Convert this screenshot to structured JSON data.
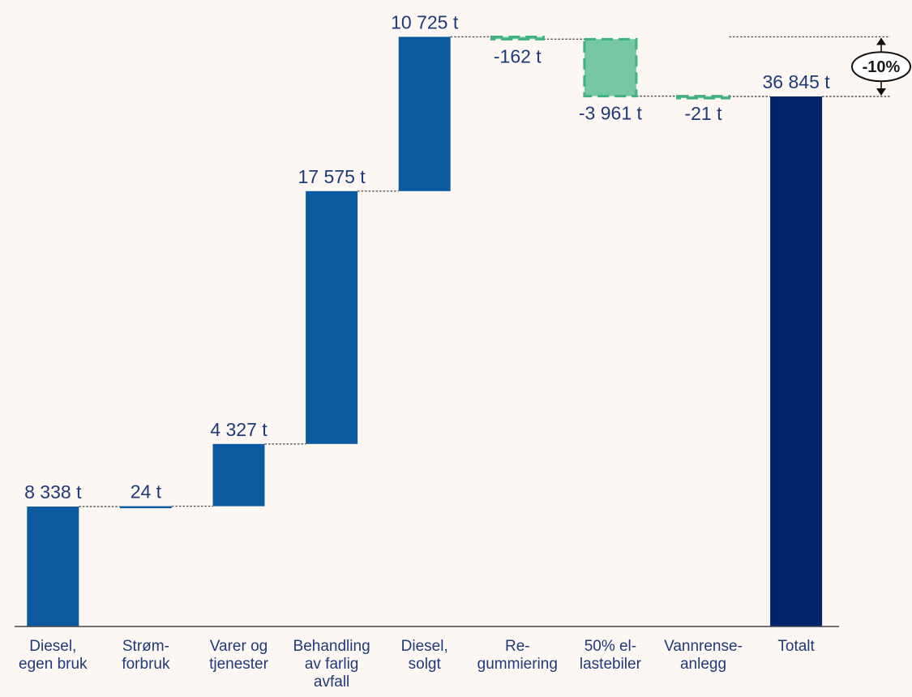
{
  "chart_data": {
    "type": "waterfall",
    "unit": "t",
    "categories": [
      [
        "Diesel,",
        "egen bruk"
      ],
      [
        "Strøm-",
        "forbruk"
      ],
      [
        "Varer og",
        "tjenester"
      ],
      [
        "Behandling",
        "av farlig",
        "avfall"
      ],
      [
        "Diesel,",
        "solgt"
      ],
      [
        "Re-",
        "gummiering"
      ],
      [
        "50% el-",
        "lastebiler"
      ],
      [
        "Vannrense-",
        "anlegg"
      ],
      [
        "Totalt"
      ]
    ],
    "values": [
      8338,
      24,
      4327,
      17575,
      10725,
      -162,
      -3961,
      -21,
      36845
    ],
    "value_labels": [
      "8 338 t",
      "24 t",
      "4 327 t",
      "17 575 t",
      "10 725 t",
      "-162 t",
      "-3 961 t",
      "-21 t",
      "36 845 t"
    ],
    "kinds": [
      "increase",
      "increase",
      "increase",
      "increase",
      "increase",
      "decrease",
      "decrease",
      "decrease",
      "total"
    ],
    "change_annotation": "-10%",
    "colors": {
      "increase": "#0b5aa0",
      "decrease_fill": "#76c7a4",
      "decrease_stroke": "#3fb27f",
      "total": "#00246b",
      "label": "#1f3a78",
      "axis": "#444444",
      "connector": "#555555",
      "background": "#fdf7f3"
    }
  }
}
